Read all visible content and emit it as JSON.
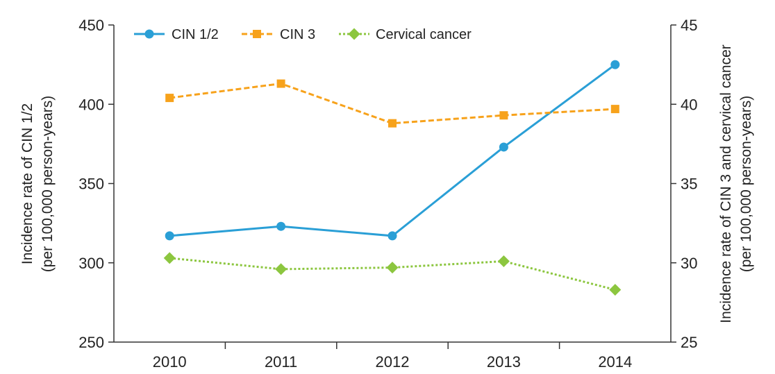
{
  "chart_data": {
    "type": "line",
    "title": "",
    "categories": [
      "2010",
      "2011",
      "2012",
      "2013",
      "2014"
    ],
    "y_left": {
      "label_line1": "Incidence rate of CIN 1/2",
      "label_line2": "(per 100,000 person-years)",
      "range": [
        250,
        450
      ],
      "ticks": [
        "250",
        "300",
        "350",
        "400",
        "450"
      ]
    },
    "y_right": {
      "label_line1": "Incidence rate of CIN 3 and cervical cancer",
      "label_line2": "(per 100,000 person-years)",
      "range": [
        25,
        45
      ],
      "ticks": [
        "25",
        "30",
        "35",
        "40",
        "45"
      ]
    },
    "grid": false,
    "legend_position": "top-left",
    "series": [
      {
        "name": "CIN 1/2",
        "axis": "left",
        "values": [
          317,
          323,
          317,
          373,
          425
        ],
        "color": "#2a9fd6",
        "marker": "circle",
        "line_style": "solid"
      },
      {
        "name": "CIN 3",
        "axis": "right",
        "values": [
          40.4,
          41.3,
          38.8,
          39.3,
          39.7
        ],
        "color": "#f7a21b",
        "marker": "square",
        "line_style": "dashed"
      },
      {
        "name": "Cervical cancer",
        "axis": "right",
        "values": [
          30.3,
          29.6,
          29.7,
          30.1,
          28.3
        ],
        "color": "#8cc63f",
        "marker": "diamond",
        "line_style": "dotted"
      }
    ]
  }
}
